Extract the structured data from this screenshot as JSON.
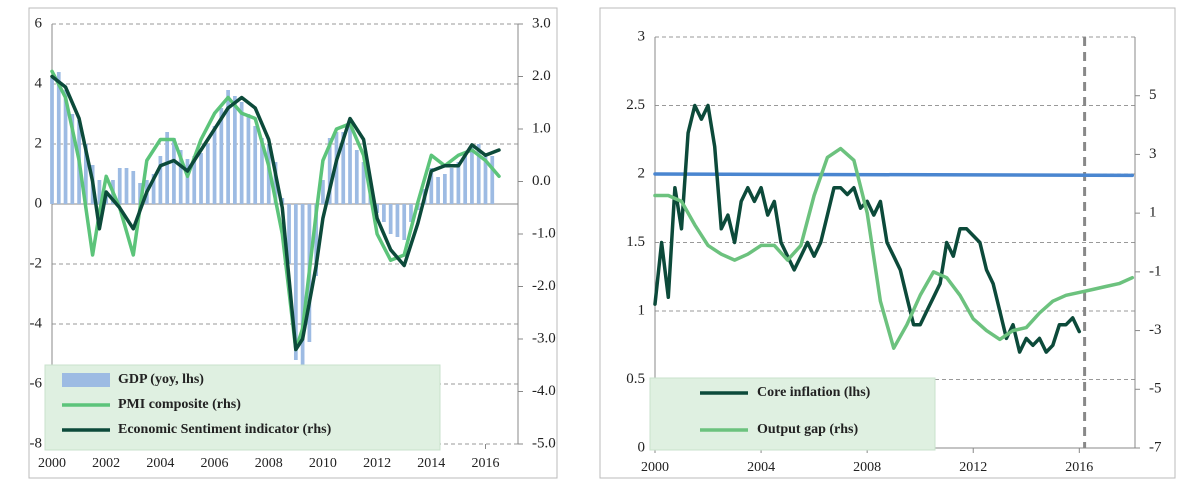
{
  "chart_data": [
    {
      "type": "bar-line",
      "xlim": [
        2000,
        2017.2
      ],
      "xticks": [
        2000,
        2002,
        2004,
        2006,
        2008,
        2010,
        2012,
        2014,
        2016
      ],
      "ylim": [
        -8,
        6
      ],
      "yticks": [
        -8,
        -6,
        -4,
        -2,
        0,
        2,
        4,
        6
      ],
      "y2lim": [
        -5,
        3
      ],
      "y2ticks": [
        {
          "value": -5,
          "label": "-5.0"
        },
        {
          "value": -4,
          "label": "-4.0"
        },
        {
          "value": -3,
          "label": "-3.0"
        },
        {
          "value": -2,
          "label": "-2.0"
        },
        {
          "value": -1,
          "label": "-1.0"
        },
        {
          "value": 0,
          "label": "0.0"
        },
        {
          "value": 1,
          "label": "1.0"
        },
        {
          "value": 2,
          "label": "2.0"
        },
        {
          "value": 3,
          "label": "3.0"
        }
      ],
      "grid": true,
      "legend": "bottom left",
      "series": [
        {
          "name": "GDP (yoy, lhs)",
          "type": "bar",
          "color": "#9dbbe3",
          "x": [
            2000,
            2000.25,
            2000.5,
            2000.75,
            2001,
            2001.25,
            2001.5,
            2001.75,
            2002,
            2002.25,
            2002.5,
            2002.75,
            2003,
            2003.25,
            2003.5,
            2003.75,
            2004,
            2004.25,
            2004.5,
            2004.75,
            2005,
            2005.25,
            2005.5,
            2005.75,
            2006,
            2006.25,
            2006.5,
            2006.75,
            2007,
            2007.25,
            2007.5,
            2007.75,
            2008,
            2008.25,
            2008.5,
            2008.75,
            2009,
            2009.25,
            2009.5,
            2009.75,
            2010,
            2010.25,
            2010.5,
            2010.75,
            2011,
            2011.25,
            2011.5,
            2011.75,
            2012,
            2012.25,
            2012.5,
            2012.75,
            2013,
            2013.25,
            2013.5,
            2013.75,
            2014,
            2014.25,
            2014.5,
            2014.75,
            2015,
            2015.25,
            2015.5,
            2015.75,
            2016,
            2016.25
          ],
          "values": [
            4.2,
            4.4,
            3.8,
            3.0,
            2.8,
            2.0,
            1.3,
            0.8,
            0.4,
            0.8,
            1.2,
            1.2,
            1.1,
            0.7,
            0.8,
            1.0,
            1.6,
            2.4,
            2.2,
            1.8,
            1.5,
            1.6,
            1.7,
            2.0,
            2.6,
            3.2,
            3.8,
            3.6,
            3.4,
            3.0,
            2.6,
            2.2,
            2.0,
            1.4,
            0.2,
            -2.0,
            -5.2,
            -5.4,
            -4.6,
            -2.4,
            0.8,
            2.2,
            2.4,
            2.4,
            2.6,
            1.8,
            1.4,
            0.5,
            -0.3,
            -0.6,
            -1.0,
            -1.1,
            -1.2,
            -0.6,
            -0.2,
            0.5,
            1.2,
            0.9,
            1.0,
            1.2,
            1.4,
            1.6,
            1.9,
            2.0,
            1.7,
            1.6
          ]
        },
        {
          "name": "PMI composite (rhs)",
          "color": "#5cc47a",
          "axis": "y2",
          "x": [
            2000,
            2000.5,
            2001,
            2001.5,
            2001.75,
            2002,
            2002.5,
            2003,
            2003.5,
            2004,
            2004.5,
            2005,
            2005.5,
            2006,
            2006.5,
            2007,
            2007.5,
            2008,
            2008.5,
            2009,
            2009.25,
            2009.75,
            2010,
            2010.5,
            2011,
            2011.5,
            2012,
            2012.5,
            2013,
            2013.5,
            2014,
            2014.5,
            2015,
            2015.5,
            2016,
            2016.5
          ],
          "values": [
            2.1,
            1.6,
            0.4,
            -1.4,
            -0.6,
            0.1,
            -0.5,
            -1.4,
            0.4,
            0.8,
            0.8,
            0.1,
            0.8,
            1.3,
            1.6,
            1.3,
            1.2,
            0.3,
            -1.0,
            -3.2,
            -2.8,
            -0.6,
            0.4,
            1.0,
            1.1,
            0.5,
            -1.0,
            -1.5,
            -1.4,
            -0.4,
            0.5,
            0.3,
            0.5,
            0.6,
            0.4,
            0.1
          ]
        },
        {
          "name": "Economic Sentiment indicator (rhs)",
          "color": "#0c4a3a",
          "axis": "y2",
          "x": [
            2000,
            2000.5,
            2001,
            2001.5,
            2001.75,
            2002,
            2002.5,
            2003,
            2003.5,
            2004,
            2004.5,
            2005,
            2005.5,
            2006,
            2006.5,
            2007,
            2007.5,
            2008,
            2008.5,
            2009,
            2009.25,
            2009.75,
            2010,
            2010.5,
            2011,
            2011.5,
            2012,
            2012.5,
            2013,
            2013.5,
            2014,
            2014.5,
            2015,
            2015.5,
            2016,
            2016.5
          ],
          "values": [
            2.0,
            1.8,
            1.2,
            0.0,
            -0.9,
            -0.2,
            -0.5,
            -0.9,
            -0.2,
            0.3,
            0.4,
            0.2,
            0.6,
            1.0,
            1.4,
            1.6,
            1.4,
            0.8,
            -0.5,
            -3.2,
            -3.0,
            -1.6,
            -0.7,
            0.4,
            1.2,
            0.8,
            -0.7,
            -1.3,
            -1.6,
            -0.8,
            0.2,
            0.3,
            0.3,
            0.7,
            0.5,
            0.6
          ]
        }
      ]
    },
    {
      "type": "line",
      "xlim": [
        2000,
        2018.1
      ],
      "xticks": [
        2000,
        2004,
        2008,
        2012,
        2016
      ],
      "ylim": [
        0,
        3
      ],
      "yticks": [
        0,
        0.5,
        1,
        1.5,
        2,
        2.5,
        3
      ],
      "y2lim": [
        -7,
        7
      ],
      "y2ticks": [
        -7,
        -5,
        -3,
        -1,
        1,
        3,
        5
      ],
      "grid": true,
      "legend": "bottom left",
      "vline": 2016.2,
      "series": [
        {
          "color": "#4a86d0",
          "x": [
            2000,
            2018
          ],
          "values": [
            2.0,
            1.99
          ]
        },
        {
          "name": "Core inflation (lhs)",
          "color": "#0c4a3a",
          "x": [
            2000,
            2000.25,
            2000.5,
            2000.75,
            2001,
            2001.25,
            2001.5,
            2001.75,
            2002,
            2002.25,
            2002.5,
            2002.75,
            2003,
            2003.25,
            2003.5,
            2003.75,
            2004,
            2004.25,
            2004.5,
            2004.75,
            2005,
            2005.25,
            2005.5,
            2005.75,
            2006,
            2006.25,
            2006.5,
            2006.75,
            2007,
            2007.25,
            2007.5,
            2007.75,
            2008,
            2008.25,
            2008.5,
            2008.75,
            2009,
            2009.25,
            2009.5,
            2009.75,
            2010,
            2010.25,
            2010.5,
            2010.75,
            2011,
            2011.25,
            2011.5,
            2011.75,
            2012,
            2012.25,
            2012.5,
            2012.75,
            2013,
            2013.25,
            2013.5,
            2013.75,
            2014,
            2014.25,
            2014.5,
            2014.75,
            2015,
            2015.25,
            2015.5,
            2015.75,
            2016
          ],
          "values": [
            1.05,
            1.5,
            1.1,
            1.9,
            1.6,
            2.3,
            2.5,
            2.4,
            2.5,
            2.2,
            1.6,
            1.7,
            1.5,
            1.8,
            1.9,
            1.8,
            1.9,
            1.7,
            1.8,
            1.5,
            1.4,
            1.3,
            1.4,
            1.5,
            1.4,
            1.5,
            1.7,
            1.9,
            1.9,
            1.85,
            1.9,
            1.75,
            1.8,
            1.7,
            1.8,
            1.5,
            1.4,
            1.3,
            1.1,
            0.9,
            0.9,
            1.0,
            1.1,
            1.2,
            1.5,
            1.4,
            1.6,
            1.6,
            1.55,
            1.5,
            1.3,
            1.2,
            1.0,
            0.8,
            0.9,
            0.7,
            0.8,
            0.75,
            0.8,
            0.7,
            0.75,
            0.9,
            0.9,
            0.95,
            0.85
          ]
        },
        {
          "name": "Output gap (rhs)",
          "color": "#6cc27e",
          "axis": "y2",
          "x": [
            2000,
            2000.5,
            2001,
            2001.5,
            2002,
            2002.5,
            2003,
            2003.5,
            2004,
            2004.5,
            2005,
            2005.5,
            2006,
            2006.5,
            2007,
            2007.5,
            2008,
            2008.5,
            2009,
            2009.5,
            2010,
            2010.5,
            2011,
            2011.5,
            2012,
            2012.5,
            2013,
            2013.5,
            2014,
            2014.5,
            2015,
            2015.5,
            2016,
            2016.5,
            2017,
            2017.5,
            2018
          ],
          "values": [
            1.6,
            1.6,
            1.4,
            0.6,
            -0.1,
            -0.4,
            -0.6,
            -0.4,
            -0.1,
            -0.1,
            -0.6,
            -0.1,
            1.6,
            2.9,
            3.2,
            2.8,
            1.0,
            -2.0,
            -3.6,
            -2.8,
            -1.8,
            -1.0,
            -1.2,
            -1.8,
            -2.6,
            -3.0,
            -3.3,
            -3.0,
            -2.9,
            -2.4,
            -2.0,
            -1.8,
            -1.7,
            -1.6,
            -1.5,
            -1.4,
            -1.2
          ]
        }
      ]
    }
  ]
}
